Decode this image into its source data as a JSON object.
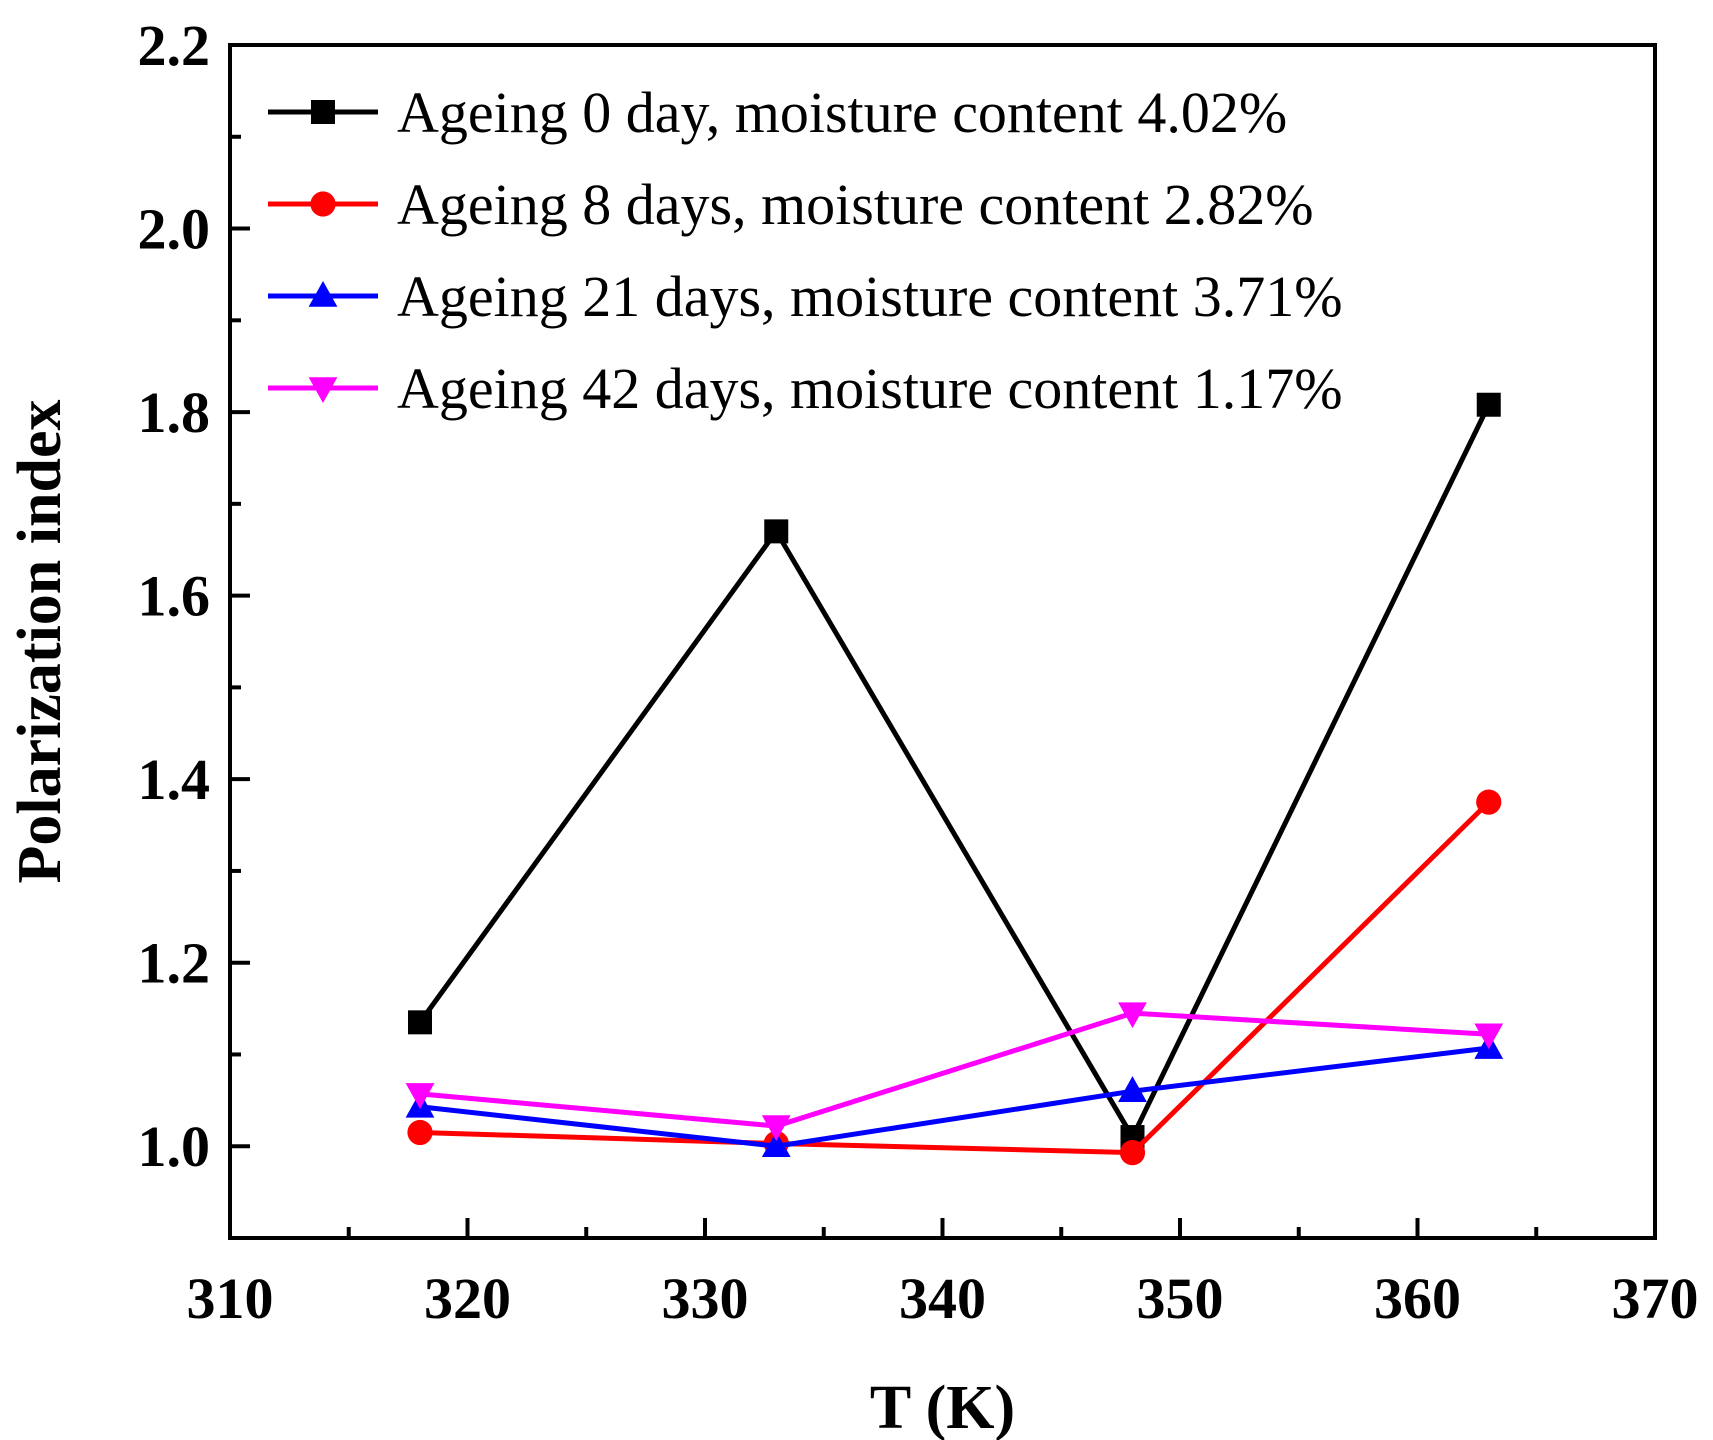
{
  "chart_data": {
    "type": "line",
    "title": "",
    "xlabel": "T (K)",
    "ylabel": "Polarization index",
    "xlim": [
      310,
      370
    ],
    "ylim": [
      0.9,
      2.2
    ],
    "x_ticks": [
      310,
      320,
      330,
      340,
      350,
      360,
      370
    ],
    "y_ticks": [
      1.0,
      1.2,
      1.4,
      1.6,
      1.8,
      2.0,
      2.2
    ],
    "x_tick_labels": [
      "310",
      "320",
      "330",
      "340",
      "350",
      "360",
      "370"
    ],
    "y_tick_labels": [
      "1.0",
      "1.2",
      "1.4",
      "1.6",
      "1.8",
      "2.0",
      "2.2"
    ],
    "grid": false,
    "legend_position": "top-left",
    "series": [
      {
        "name": "Ageing 0 day, moisture content 4.02%",
        "color": "#000000",
        "marker": "square",
        "x": [
          318,
          333,
          348,
          363
        ],
        "y": [
          1.135,
          1.67,
          1.01,
          1.808
        ]
      },
      {
        "name": "Ageing 8 days, moisture content 2.82%",
        "color": "#ff0000",
        "marker": "circle",
        "x": [
          318,
          333,
          348,
          363
        ],
        "y": [
          1.015,
          1.003,
          0.993,
          1.375
        ]
      },
      {
        "name": "Ageing 21 days, moisture content 3.71%",
        "color": "#0000ff",
        "marker": "triangle-up",
        "x": [
          318,
          333,
          348,
          363
        ],
        "y": [
          1.043,
          1.0,
          1.06,
          1.107
        ]
      },
      {
        "name": "Ageing 42 days, moisture content 1.17%",
        "color": "#ff00ff",
        "marker": "triangle-down",
        "x": [
          318,
          333,
          348,
          363
        ],
        "y": [
          1.057,
          1.022,
          1.145,
          1.122
        ]
      }
    ]
  }
}
